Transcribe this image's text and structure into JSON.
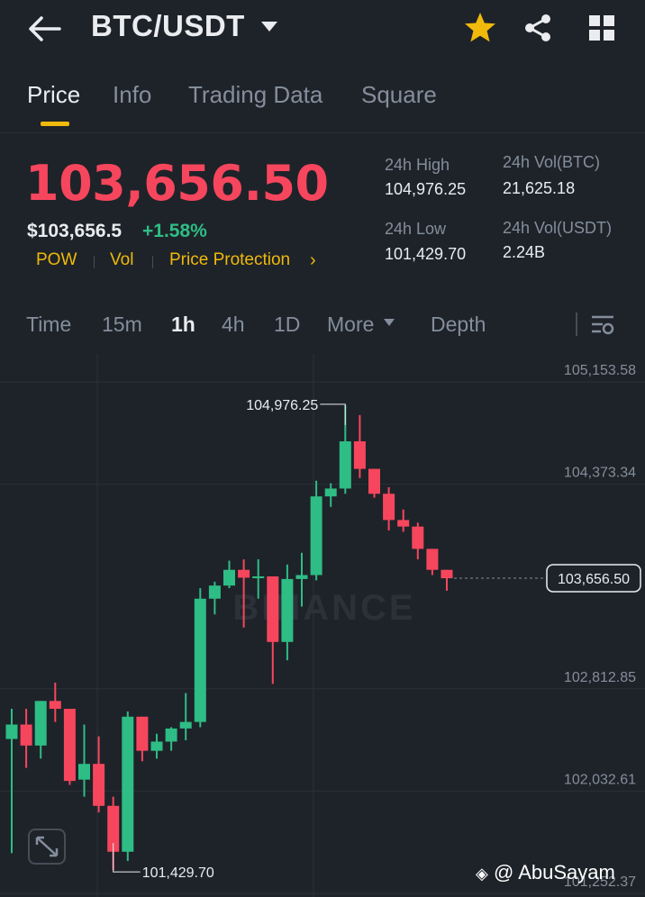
{
  "header": {
    "pair": "BTC/USDT",
    "icons": [
      "back-arrow-icon",
      "caret-down-icon",
      "star-icon",
      "share-icon",
      "grid-icon"
    ],
    "star_color": "#f0b90b"
  },
  "tabs": [
    {
      "label": "Price",
      "active": true
    },
    {
      "label": "Info",
      "active": false
    },
    {
      "label": "Trading Data",
      "active": false
    },
    {
      "label": "Square",
      "active": false
    }
  ],
  "price": {
    "last": "103,656.50",
    "usd": "$103,656.5",
    "change_pct": "+1.58%",
    "tags": [
      "POW",
      "Vol",
      "Price Protection"
    ],
    "tag_more": "›"
  },
  "stats": {
    "high_label": "24h High",
    "high_value": "104,976.25",
    "low_label": "24h Low",
    "low_value": "101,429.70",
    "vol_btc_label": "24h Vol(BTC)",
    "vol_btc_value": "21,625.18",
    "vol_usdt_label": "24h Vol(USDT)",
    "vol_usdt_value": "2.24B"
  },
  "intervals": [
    {
      "label": "Time",
      "active": false
    },
    {
      "label": "15m",
      "active": false
    },
    {
      "label": "1h",
      "active": true
    },
    {
      "label": "4h",
      "active": false
    },
    {
      "label": "1D",
      "active": false
    },
    {
      "label": "More",
      "active": false
    },
    {
      "label": "Depth",
      "active": false
    }
  ],
  "colors": {
    "up": "#2ebd85",
    "down": "#f6465d",
    "accent": "#f0b90b",
    "bg": "#1e2329"
  },
  "chart_data": {
    "type": "candlestick",
    "y_ticks": [
      "105,153.58",
      "104,373.34",
      "102,812.85",
      "102,032.61",
      "101,252.37"
    ],
    "y_tick_values": [
      105153.58,
      104373.34,
      102812.85,
      102032.61,
      101252.37
    ],
    "current_price_label": "103,656.50",
    "current_price": 103656.5,
    "high_marker": "104,976.25",
    "high_value": 104976.25,
    "low_marker": "101,429.70",
    "low_value": 101429.7,
    "watermark_text": "BINANCE",
    "candles": [
      {
        "o": 102430,
        "h": 102660,
        "l": 101560,
        "c": 102540
      },
      {
        "o": 102540,
        "h": 102660,
        "l": 102210,
        "c": 102380
      },
      {
        "o": 102380,
        "h": 102720,
        "l": 102280,
        "c": 102720
      },
      {
        "o": 102720,
        "h": 102860,
        "l": 102560,
        "c": 102660
      },
      {
        "o": 102660,
        "h": 102660,
        "l": 102080,
        "c": 102110
      },
      {
        "o": 102120,
        "h": 102540,
        "l": 101990,
        "c": 102240
      },
      {
        "o": 102240,
        "h": 102450,
        "l": 101870,
        "c": 101920
      },
      {
        "o": 101920,
        "h": 101990,
        "l": 101430,
        "c": 101570
      },
      {
        "o": 101570,
        "h": 102640,
        "l": 101500,
        "c": 102600
      },
      {
        "o": 102600,
        "h": 102600,
        "l": 102260,
        "c": 102340
      },
      {
        "o": 102340,
        "h": 102470,
        "l": 102280,
        "c": 102410
      },
      {
        "o": 102410,
        "h": 102520,
        "l": 102340,
        "c": 102510
      },
      {
        "o": 102510,
        "h": 102780,
        "l": 102420,
        "c": 102560
      },
      {
        "o": 102560,
        "h": 103580,
        "l": 102520,
        "c": 103500
      },
      {
        "o": 103500,
        "h": 103630,
        "l": 103380,
        "c": 103600
      },
      {
        "o": 103600,
        "h": 103790,
        "l": 103580,
        "c": 103720
      },
      {
        "o": 103720,
        "h": 103800,
        "l": 103280,
        "c": 103660
      },
      {
        "o": 103660,
        "h": 103800,
        "l": 103500,
        "c": 103670
      },
      {
        "o": 103670,
        "h": 103670,
        "l": 102850,
        "c": 103170
      },
      {
        "o": 103170,
        "h": 103760,
        "l": 103030,
        "c": 103650
      },
      {
        "o": 103650,
        "h": 103850,
        "l": 103440,
        "c": 103680
      },
      {
        "o": 103680,
        "h": 104400,
        "l": 103640,
        "c": 104280
      },
      {
        "o": 104280,
        "h": 104380,
        "l": 104200,
        "c": 104340
      },
      {
        "o": 104340,
        "h": 104976,
        "l": 104300,
        "c": 104700
      },
      {
        "o": 104700,
        "h": 104900,
        "l": 104420,
        "c": 104490
      },
      {
        "o": 104490,
        "h": 104490,
        "l": 104270,
        "c": 104300
      },
      {
        "o": 104300,
        "h": 104350,
        "l": 104020,
        "c": 104100
      },
      {
        "o": 104100,
        "h": 104180,
        "l": 104010,
        "c": 104050
      },
      {
        "o": 104050,
        "h": 104080,
        "l": 103800,
        "c": 103880
      },
      {
        "o": 103880,
        "h": 103880,
        "l": 103680,
        "c": 103720
      },
      {
        "o": 103720,
        "h": 103720,
        "l": 103560,
        "c": 103656
      }
    ]
  },
  "watermark": "@ AbuSayam"
}
